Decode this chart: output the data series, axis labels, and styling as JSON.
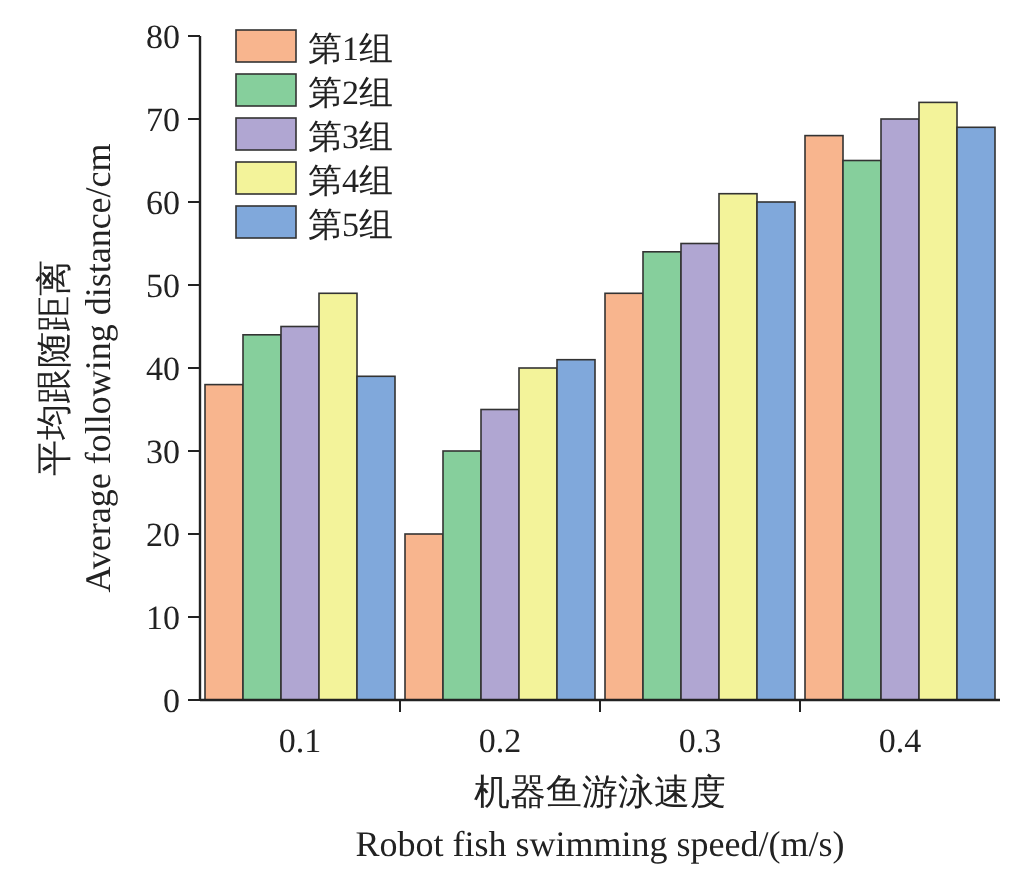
{
  "chart_data": {
    "type": "bar",
    "xlabel": "机器鱼游泳速度\nRobot fish swimming speed/(m/s)",
    "ylabel": "平均跟随距离\nAverage following distance/cm",
    "categories": [
      "0.1",
      "0.2",
      "0.3",
      "0.4"
    ],
    "series": [
      {
        "name": "第1组",
        "color": "#f8b58e",
        "values": [
          38,
          20,
          49,
          68
        ]
      },
      {
        "name": "第2组",
        "color": "#86cf9c",
        "values": [
          44,
          30,
          54,
          65
        ]
      },
      {
        "name": "第3组",
        "color": "#b0a6d2",
        "values": [
          45,
          35,
          55,
          70
        ]
      },
      {
        "name": "第4组",
        "color": "#f3f39a",
        "values": [
          49,
          40,
          61,
          72
        ]
      },
      {
        "name": "第5组",
        "color": "#80a8db",
        "values": [
          39,
          41,
          60,
          69
        ]
      }
    ],
    "ylim": [
      0,
      80
    ],
    "yticks": [
      0,
      10,
      20,
      30,
      40,
      50,
      60,
      70,
      80
    ],
    "legend": "top left",
    "grid": false
  }
}
